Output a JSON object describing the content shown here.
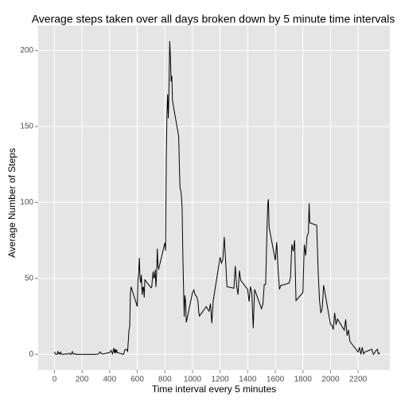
{
  "chart_data": {
    "type": "line",
    "title": "Average steps taken over all days broken down by 5 minute time intervals",
    "x_label": "Time interval every 5 minutes",
    "y_label": "Average Number of Steps",
    "color": "#000000",
    "grid": true,
    "xlim": [
      -118,
      2430
    ],
    "ylim": [
      -10.3,
      216.5
    ],
    "xticks": [
      0,
      200,
      400,
      600,
      800,
      1000,
      1200,
      1400,
      1600,
      1800,
      2000,
      2200
    ],
    "yticks": [
      0,
      50,
      100,
      150,
      200
    ],
    "x": [
      0,
      5,
      10,
      15,
      20,
      25,
      30,
      35,
      40,
      45,
      50,
      55,
      100,
      105,
      110,
      115,
      120,
      125,
      130,
      135,
      140,
      145,
      150,
      155,
      200,
      230,
      300,
      320,
      330,
      340,
      350,
      400,
      410,
      420,
      430,
      435,
      440,
      445,
      450,
      455,
      500,
      510,
      520,
      530,
      540,
      545,
      550,
      555,
      600,
      605,
      610,
      615,
      620,
      625,
      630,
      635,
      640,
      645,
      650,
      655,
      700,
      705,
      710,
      715,
      720,
      725,
      730,
      735,
      740,
      745,
      750,
      755,
      800,
      805,
      810,
      815,
      820,
      825,
      830,
      835,
      840,
      845,
      850,
      855,
      900,
      905,
      910,
      915,
      920,
      925,
      930,
      935,
      940,
      945,
      950,
      955,
      1000,
      1010,
      1020,
      1030,
      1040,
      1045,
      1050,
      1100,
      1110,
      1120,
      1130,
      1140,
      1150,
      1200,
      1210,
      1220,
      1230,
      1240,
      1250,
      1300,
      1310,
      1320,
      1330,
      1340,
      1350,
      1400,
      1410,
      1420,
      1430,
      1440,
      1450,
      1500,
      1510,
      1520,
      1530,
      1540,
      1545,
      1550,
      1555,
      1600,
      1610,
      1620,
      1630,
      1640,
      1650,
      1700,
      1710,
      1720,
      1730,
      1740,
      1750,
      1800,
      1810,
      1820,
      1830,
      1840,
      1845,
      1850,
      1900,
      1910,
      1920,
      1930,
      1940,
      1950,
      2000,
      2010,
      2020,
      2030,
      2040,
      2050,
      2100,
      2110,
      2120,
      2130,
      2140,
      2150,
      2200,
      2210,
      2220,
      2230,
      2240,
      2250,
      2300,
      2310,
      2320,
      2330,
      2340,
      2345,
      2350,
      2355
    ],
    "values": [
      1.7,
      0.3,
      0.1,
      0.2,
      0.1,
      2.1,
      0.5,
      0.9,
      0,
      1.5,
      0.4,
      0,
      0.3,
      0.7,
      0.2,
      0.3,
      0,
      1.1,
      1.8,
      0.2,
      0.2,
      0.4,
      0.3,
      0,
      0,
      0,
      0,
      0.2,
      1.6,
      0.5,
      0.2,
      1.2,
      2.6,
      0.3,
      4.1,
      0.7,
      3.5,
      0.8,
      3.1,
      1.1,
      0,
      3,
      3.3,
      2.1,
      16,
      18.3,
      39.5,
      44.5,
      31.5,
      49.3,
      53.8,
      63.5,
      50,
      47.1,
      52.2,
      39.3,
      44,
      44.2,
      37.4,
      49,
      43.8,
      44.4,
      50.5,
      54.5,
      49.9,
      51,
      55.7,
      44.3,
      52.3,
      69.5,
      57.8,
      56.2,
      73.4,
      68.2,
      129.4,
      157.5,
      171.2,
      155.4,
      177.3,
      206.2,
      195.9,
      179.6,
      183.4,
      167,
      143.5,
      124,
      109.1,
      108.1,
      103.7,
      96,
      66.2,
      45.2,
      24.8,
      38.8,
      35,
      21,
      40.6,
      42.4,
      38.9,
      38.2,
      34.6,
      28.3,
      25.2,
      31.4,
      29.7,
      28.4,
      33.4,
      20.5,
      35.1,
      63.9,
      60,
      62.5,
      77.3,
      61.7,
      44.5,
      43.5,
      58.1,
      44.7,
      39.3,
      55.1,
      48.6,
      42.7,
      34.8,
      44.6,
      40.4,
      17.2,
      42.8,
      30,
      33.1,
      45.9,
      46.1,
      82.4,
      98.7,
      102.1,
      83.6,
      62,
      73.8,
      56.2,
      42.8,
      45.4,
      45.5,
      46.9,
      50.6,
      72.4,
      67.7,
      75.1,
      35.4,
      40.7,
      72.2,
      65,
      77.7,
      80,
      99.5,
      86.6,
      84.9,
      55.5,
      35.9,
      27.2,
      30.2,
      45.5,
      19.6,
      19.3,
      16.3,
      27.3,
      19.5,
      23.3,
      15.9,
      23,
      12.3,
      16.1,
      8.8,
      7.3,
      1.6,
      4.6,
      0,
      4.6,
      0.3,
      1.6,
      3.3,
      0,
      0.9,
      2.6,
      3.3,
      0.7,
      0.2,
      1.1
    ]
  }
}
